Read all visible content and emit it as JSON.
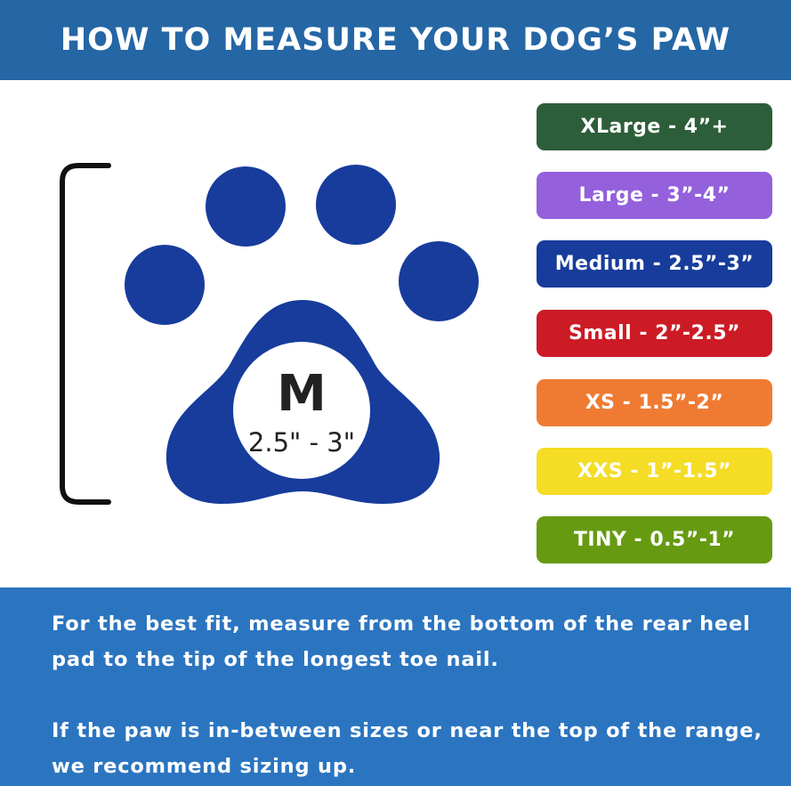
{
  "header": {
    "title": "HOW TO MEASURE YOUR DOG’S PAW"
  },
  "paw": {
    "size_letter": "M",
    "size_range": "2.5\" - 3\"",
    "color": "#173c9c"
  },
  "sizes": [
    {
      "label": "XLarge - 4”+",
      "color": "#2d5e3a"
    },
    {
      "label": "Large - 3”-4”",
      "color": "#9460dc"
    },
    {
      "label": "Medium - 2.5”-3”",
      "color": "#173c9c"
    },
    {
      "label": "Small - 2”-2.5”",
      "color": "#cc1b25"
    },
    {
      "label": "XS - 1.5”-2”",
      "color": "#ef7b33"
    },
    {
      "label": "XXS - 1”-1.5”",
      "color": "#f5dc25"
    },
    {
      "label": "TINY - 0.5”-1”",
      "color": "#669a11"
    }
  ],
  "footer": {
    "line1": "For the best fit, measure from the bottom of the rear heel pad to the tip of the longest toe nail.",
    "line2": "If the paw is in-between sizes or near the top of the range, we recommend sizing up."
  }
}
